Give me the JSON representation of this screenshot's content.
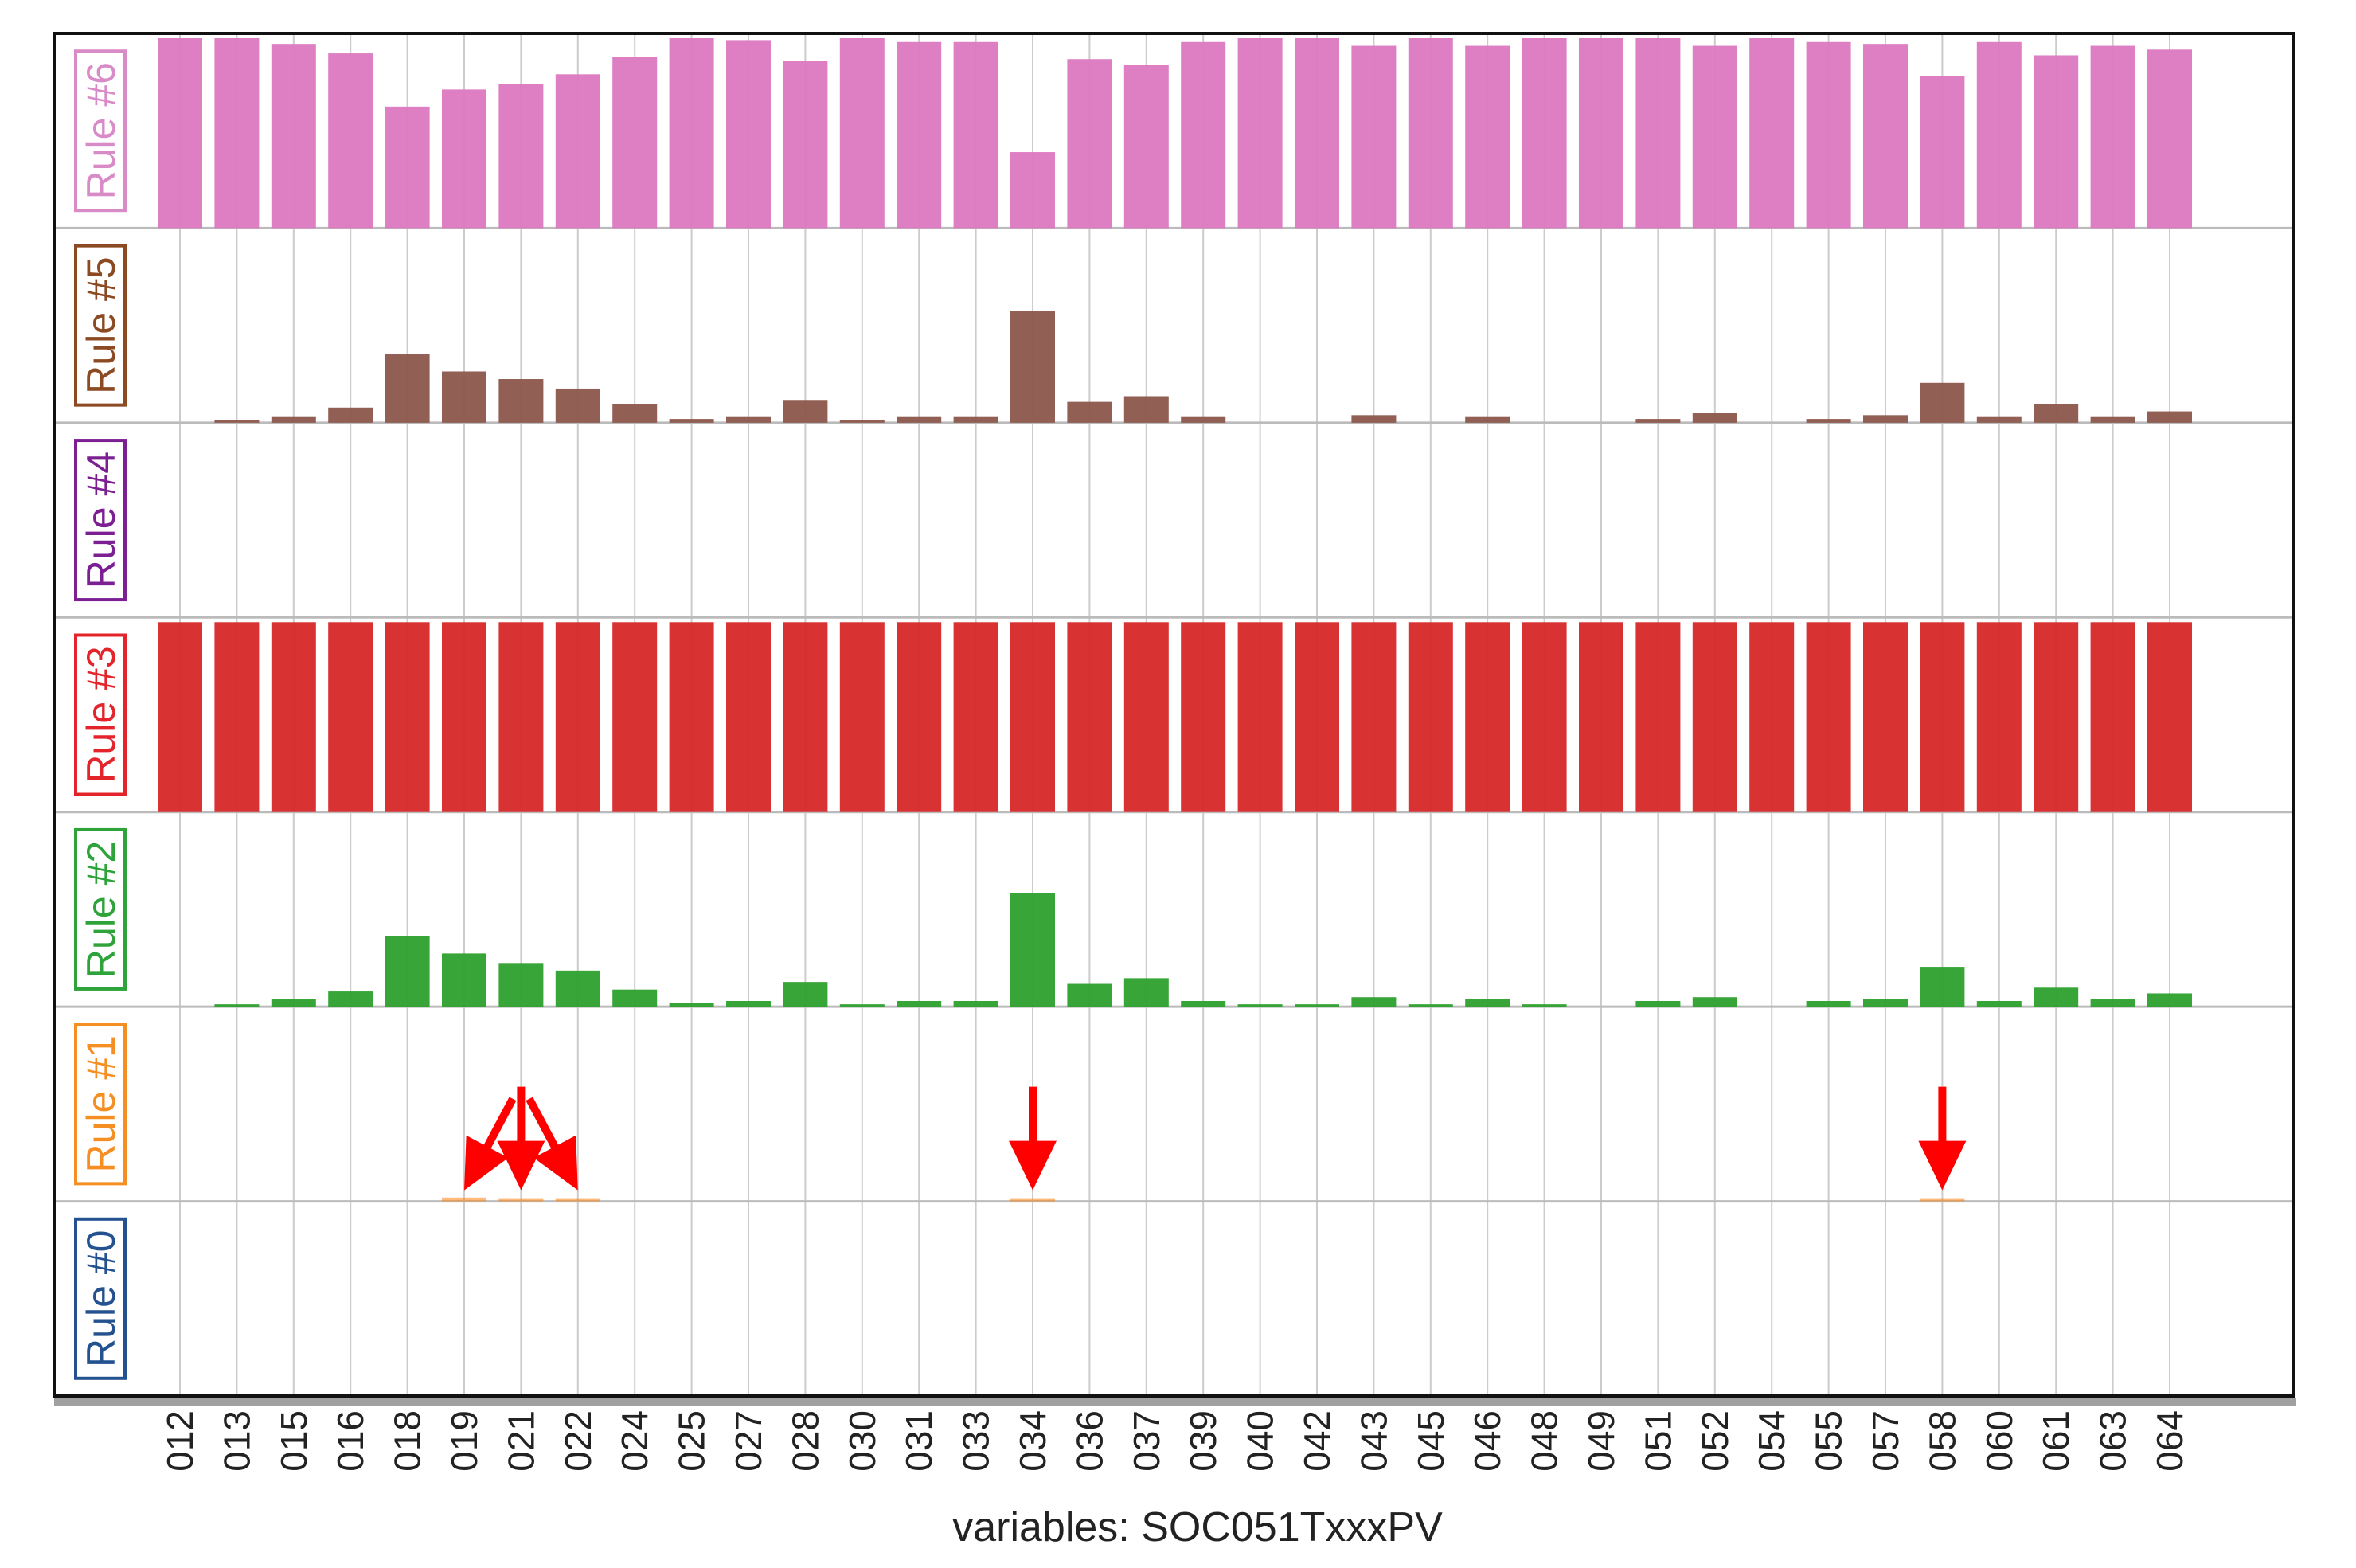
{
  "chart_data": {
    "type": "bar",
    "title": "",
    "xlabel": "variables: SOC051TxxxPV",
    "ylabel": "",
    "categories": [
      "012",
      "013",
      "015",
      "016",
      "018",
      "019",
      "021",
      "022",
      "024",
      "025",
      "027",
      "028",
      "030",
      "031",
      "033",
      "034",
      "036",
      "037",
      "039",
      "040",
      "042",
      "043",
      "045",
      "046",
      "048",
      "049",
      "051",
      "052",
      "054",
      "055",
      "057",
      "058",
      "060",
      "061",
      "063",
      "064"
    ],
    "panel_ylim": [
      0,
      1
    ],
    "series": [
      {
        "name": "Rule #6",
        "color": "#dc78c1",
        "label_color": "#d98bc8",
        "values": [
          1.0,
          1.0,
          0.97,
          0.92,
          0.64,
          0.73,
          0.76,
          0.81,
          0.9,
          1.0,
          0.99,
          0.88,
          1.0,
          0.98,
          0.98,
          0.4,
          0.89,
          0.86,
          0.98,
          1.0,
          1.0,
          0.96,
          1.0,
          0.96,
          1.0,
          1.0,
          1.0,
          0.96,
          1.0,
          0.98,
          0.97,
          0.8,
          0.98,
          0.91,
          0.96,
          0.94
        ]
      },
      {
        "name": "Rule #5",
        "color": "#8c564b",
        "label_color": "#8c4a22",
        "values": [
          0.0,
          0.01,
          0.03,
          0.08,
          0.36,
          0.27,
          0.23,
          0.18,
          0.1,
          0.02,
          0.03,
          0.12,
          0.01,
          0.03,
          0.03,
          0.59,
          0.11,
          0.14,
          0.03,
          0.0,
          0.0,
          0.04,
          0.0,
          0.03,
          0.0,
          0.0,
          0.02,
          0.05,
          0.0,
          0.02,
          0.04,
          0.21,
          0.03,
          0.1,
          0.03,
          0.06
        ]
      },
      {
        "name": "Rule #4",
        "color": "#9467bd",
        "label_color": "#7b1f93",
        "values": [
          0,
          0,
          0,
          0,
          0,
          0,
          0,
          0,
          0,
          0,
          0,
          0,
          0,
          0,
          0,
          0,
          0,
          0,
          0,
          0,
          0,
          0,
          0,
          0,
          0,
          0,
          0,
          0,
          0,
          0,
          0,
          0,
          0,
          0,
          0,
          0
        ]
      },
      {
        "name": "Rule #3",
        "color": "#d62728",
        "label_color": "#e3242b",
        "values": [
          1,
          1,
          1,
          1,
          1,
          1,
          1,
          1,
          1,
          1,
          1,
          1,
          1,
          1,
          1,
          1,
          1,
          1,
          1,
          1,
          1,
          1,
          1,
          1,
          1,
          1,
          1,
          1,
          1,
          1,
          1,
          1,
          1,
          1,
          1,
          1
        ]
      },
      {
        "name": "Rule #2",
        "color": "#2ca02c",
        "label_color": "#2ea33a",
        "values": [
          0.0,
          0.01,
          0.04,
          0.08,
          0.37,
          0.28,
          0.23,
          0.19,
          0.09,
          0.02,
          0.03,
          0.13,
          0.01,
          0.03,
          0.03,
          0.6,
          0.12,
          0.15,
          0.03,
          0.01,
          0.01,
          0.05,
          0.01,
          0.04,
          0.01,
          0.0,
          0.03,
          0.05,
          0.0,
          0.03,
          0.04,
          0.21,
          0.03,
          0.1,
          0.04,
          0.07
        ]
      },
      {
        "name": "Rule #1",
        "color": "#ff7f0e",
        "label_color": "#f58f24",
        "values": [
          0,
          0,
          0,
          0,
          0,
          0.02,
          0.01,
          0.01,
          0,
          0,
          0,
          0,
          0,
          0,
          0,
          0.01,
          0,
          0,
          0,
          0,
          0,
          0,
          0,
          0,
          0,
          0,
          0,
          0,
          0,
          0,
          0,
          0.01,
          0,
          0,
          0,
          0
        ]
      },
      {
        "name": "Rule #0",
        "color": "#1f77b4",
        "label_color": "#24518f",
        "values": [
          0,
          0,
          0,
          0,
          0,
          0,
          0,
          0,
          0,
          0,
          0,
          0,
          0,
          0,
          0,
          0,
          0,
          0,
          0,
          0,
          0,
          0,
          0,
          0,
          0,
          0,
          0,
          0,
          0,
          0,
          0,
          0,
          0,
          0,
          0,
          0
        ]
      }
    ],
    "annotations": {
      "type": "arrows",
      "color": "#ff0000",
      "panel": "Rule #1",
      "targets": [
        "019",
        "021",
        "022",
        "034",
        "058"
      ]
    },
    "grid": true
  }
}
